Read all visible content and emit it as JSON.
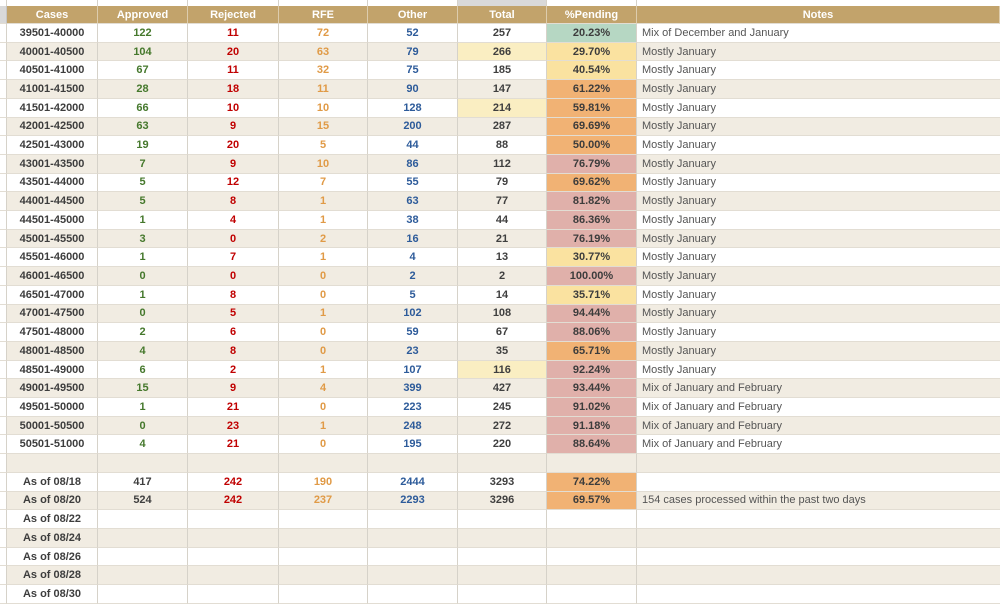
{
  "colors": {
    "header_bg": "#c2a36b",
    "header_text": "#ffffff",
    "row_bg": "#ffffff",
    "row_alt_bg": "#f1ece2",
    "grid_v": "#d6d2c9",
    "grid_h": "#e2ddd3",
    "corner_gray": "#d9d9d9",
    "cases_text": "#3d3d3d",
    "approved_text": "#45782c",
    "rejected_text": "#c00000",
    "rfe_text": "#e09a46",
    "other_text": "#2d5b9a",
    "total_text": "#3f3f3f",
    "pending_text": "#3c3c3c",
    "notes_text": "#555555",
    "pending_green": "#b6d7c3",
    "pending_yellow": "#fae2a0",
    "pending_orange": "#f1b274",
    "pending_pink": "#e0b0aa",
    "total_highlight": "#faeec2"
  },
  "header": {
    "labels": [
      "Cases",
      "Approved",
      "Rejected",
      "RFE",
      "Other",
      "Total",
      "%Pending",
      "Notes"
    ]
  },
  "table": {
    "rows": [
      {
        "cases": "39501-40000",
        "approved": "122",
        "rejected": "11",
        "rfe": "72",
        "other": "52",
        "total": "257",
        "pending": "20.23%",
        "pending_color": "green",
        "note": "Mix of December and January",
        "total_highlight": false
      },
      {
        "cases": "40001-40500",
        "approved": "104",
        "rejected": "20",
        "rfe": "63",
        "other": "79",
        "total": "266",
        "pending": "29.70%",
        "pending_color": "yellow",
        "note": "Mostly January",
        "total_highlight": true
      },
      {
        "cases": "40501-41000",
        "approved": "67",
        "rejected": "11",
        "rfe": "32",
        "other": "75",
        "total": "185",
        "pending": "40.54%",
        "pending_color": "yellow",
        "note": "Mostly January",
        "total_highlight": false
      },
      {
        "cases": "41001-41500",
        "approved": "28",
        "rejected": "18",
        "rfe": "11",
        "other": "90",
        "total": "147",
        "pending": "61.22%",
        "pending_color": "orange",
        "note": "Mostly January",
        "total_highlight": false
      },
      {
        "cases": "41501-42000",
        "approved": "66",
        "rejected": "10",
        "rfe": "10",
        "other": "128",
        "total": "214",
        "pending": "59.81%",
        "pending_color": "orange",
        "note": "Mostly January",
        "total_highlight": true
      },
      {
        "cases": "42001-42500",
        "approved": "63",
        "rejected": "9",
        "rfe": "15",
        "other": "200",
        "total": "287",
        "pending": "69.69%",
        "pending_color": "orange",
        "note": "Mostly January",
        "total_highlight": false
      },
      {
        "cases": "42501-43000",
        "approved": "19",
        "rejected": "20",
        "rfe": "5",
        "other": "44",
        "total": "88",
        "pending": "50.00%",
        "pending_color": "orange",
        "note": "Mostly January",
        "total_highlight": false
      },
      {
        "cases": "43001-43500",
        "approved": "7",
        "rejected": "9",
        "rfe": "10",
        "other": "86",
        "total": "112",
        "pending": "76.79%",
        "pending_color": "pink",
        "note": "Mostly January",
        "total_highlight": false
      },
      {
        "cases": "43501-44000",
        "approved": "5",
        "rejected": "12",
        "rfe": "7",
        "other": "55",
        "total": "79",
        "pending": "69.62%",
        "pending_color": "orange",
        "note": "Mostly January",
        "total_highlight": false
      },
      {
        "cases": "44001-44500",
        "approved": "5",
        "rejected": "8",
        "rfe": "1",
        "other": "63",
        "total": "77",
        "pending": "81.82%",
        "pending_color": "pink",
        "note": "Mostly January",
        "total_highlight": false
      },
      {
        "cases": "44501-45000",
        "approved": "1",
        "rejected": "4",
        "rfe": "1",
        "other": "38",
        "total": "44",
        "pending": "86.36%",
        "pending_color": "pink",
        "note": "Mostly January",
        "total_highlight": false
      },
      {
        "cases": "45001-45500",
        "approved": "3",
        "rejected": "0",
        "rfe": "2",
        "other": "16",
        "total": "21",
        "pending": "76.19%",
        "pending_color": "pink",
        "note": "Mostly January",
        "total_highlight": false
      },
      {
        "cases": "45501-46000",
        "approved": "1",
        "rejected": "7",
        "rfe": "1",
        "other": "4",
        "total": "13",
        "pending": "30.77%",
        "pending_color": "yellow",
        "note": "Mostly January",
        "total_highlight": false
      },
      {
        "cases": "46001-46500",
        "approved": "0",
        "rejected": "0",
        "rfe": "0",
        "other": "2",
        "total": "2",
        "pending": "100.00%",
        "pending_color": "pink",
        "note": "Mostly January",
        "total_highlight": false
      },
      {
        "cases": "46501-47000",
        "approved": "1",
        "rejected": "8",
        "rfe": "0",
        "other": "5",
        "total": "14",
        "pending": "35.71%",
        "pending_color": "yellow",
        "note": "Mostly January",
        "total_highlight": false
      },
      {
        "cases": "47001-47500",
        "approved": "0",
        "rejected": "5",
        "rfe": "1",
        "other": "102",
        "total": "108",
        "pending": "94.44%",
        "pending_color": "pink",
        "note": "Mostly January",
        "total_highlight": false
      },
      {
        "cases": "47501-48000",
        "approved": "2",
        "rejected": "6",
        "rfe": "0",
        "other": "59",
        "total": "67",
        "pending": "88.06%",
        "pending_color": "pink",
        "note": "Mostly January",
        "total_highlight": false
      },
      {
        "cases": "48001-48500",
        "approved": "4",
        "rejected": "8",
        "rfe": "0",
        "other": "23",
        "total": "35",
        "pending": "65.71%",
        "pending_color": "orange",
        "note": "Mostly January",
        "total_highlight": false
      },
      {
        "cases": "48501-49000",
        "approved": "6",
        "rejected": "2",
        "rfe": "1",
        "other": "107",
        "total": "116",
        "pending": "92.24%",
        "pending_color": "pink",
        "note": "Mostly January",
        "total_highlight": true
      },
      {
        "cases": "49001-49500",
        "approved": "15",
        "rejected": "9",
        "rfe": "4",
        "other": "399",
        "total": "427",
        "pending": "93.44%",
        "pending_color": "pink",
        "note": "Mix of January and February",
        "total_highlight": false
      },
      {
        "cases": "49501-50000",
        "approved": "1",
        "rejected": "21",
        "rfe": "0",
        "other": "223",
        "total": "245",
        "pending": "91.02%",
        "pending_color": "pink",
        "note": "Mix of January and February",
        "total_highlight": false
      },
      {
        "cases": "50001-50500",
        "approved": "0",
        "rejected": "23",
        "rfe": "1",
        "other": "248",
        "total": "272",
        "pending": "91.18%",
        "pending_color": "pink",
        "note": "Mix of January and February",
        "total_highlight": false
      },
      {
        "cases": "50501-51000",
        "approved": "4",
        "rejected": "21",
        "rfe": "0",
        "other": "195",
        "total": "220",
        "pending": "88.64%",
        "pending_color": "pink",
        "note": "Mix of January and February",
        "total_highlight": false
      }
    ],
    "summary_rows": [
      {
        "label": "As of 08/18",
        "approved": "417",
        "rejected": "242",
        "rfe": "190",
        "other": "2444",
        "total": "3293",
        "pending": "74.22%",
        "pending_color": "orange",
        "note": ""
      },
      {
        "label": "As of 08/20",
        "approved": "524",
        "rejected": "242",
        "rfe": "237",
        "other": "2293",
        "total": "3296",
        "pending": "69.57%",
        "pending_color": "orange",
        "note": "154 cases processed within the past two days"
      },
      {
        "label": "As of 08/22",
        "approved": "",
        "rejected": "",
        "rfe": "",
        "other": "",
        "total": "",
        "pending": "",
        "pending_color": "",
        "note": ""
      },
      {
        "label": "As of 08/24",
        "approved": "",
        "rejected": "",
        "rfe": "",
        "other": "",
        "total": "",
        "pending": "",
        "pending_color": "",
        "note": ""
      },
      {
        "label": "As of 08/26",
        "approved": "",
        "rejected": "",
        "rfe": "",
        "other": "",
        "total": "",
        "pending": "",
        "pending_color": "",
        "note": ""
      },
      {
        "label": "As of 08/28",
        "approved": "",
        "rejected": "",
        "rfe": "",
        "other": "",
        "total": "",
        "pending": "",
        "pending_color": "",
        "note": ""
      },
      {
        "label": "As of 08/30",
        "approved": "",
        "rejected": "",
        "rfe": "",
        "other": "",
        "total": "",
        "pending": "",
        "pending_color": "",
        "note": ""
      }
    ]
  }
}
